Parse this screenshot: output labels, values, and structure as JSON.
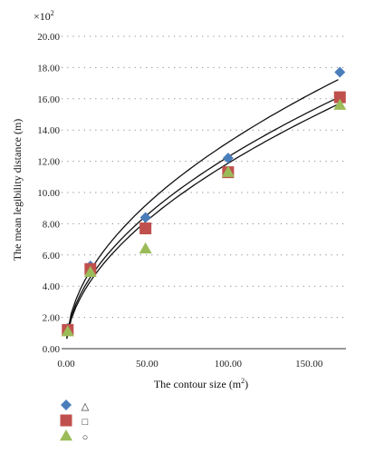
{
  "chart_data": {
    "type": "scatter",
    "multiplier": "×10",
    "multiplier_exp": "2",
    "xlabel": "The contour size (m",
    "xlabel_sup": "2",
    "xlabel_end": ")",
    "ylabel": "The mean legibility distance (m)",
    "xlim": [
      0,
      175
    ],
    "ylim": [
      0,
      20
    ],
    "x_ticks": [
      0,
      50,
      100,
      150
    ],
    "x_tick_labels": [
      "0.00",
      "50.00",
      "100.00",
      "150.00"
    ],
    "y_ticks": [
      0,
      2,
      4,
      6,
      8,
      10,
      12,
      14,
      16,
      18,
      20
    ],
    "y_tick_labels": [
      "0.00",
      "2.00",
      "4.00",
      "6.00",
      "8.00",
      "10.00",
      "12.00",
      "14.00",
      "16.00",
      "18.00",
      "20.00"
    ],
    "grid": "horizontal dotted",
    "series": [
      {
        "marker": "diamond",
        "color": "#4a7ebb",
        "x": [
          1,
          15,
          49,
          100,
          169
        ],
        "y": [
          1.3,
          5.3,
          8.4,
          12.2,
          17.7
        ],
        "fit": {
          "a": 1.25,
          "b": 0.512
        }
      },
      {
        "marker": "square",
        "color": "#c0504d",
        "x": [
          1,
          15,
          49,
          100,
          169
        ],
        "y": [
          1.2,
          5.1,
          7.7,
          11.3,
          16.1
        ],
        "fit": {
          "a": 1.12,
          "b": 0.52
        }
      },
      {
        "marker": "triangle",
        "color": "#9bbb59",
        "x": [
          1,
          15,
          49,
          100,
          169
        ],
        "y": [
          1.1,
          4.9,
          6.4,
          11.3,
          15.6
        ],
        "fit": {
          "a": 1.02,
          "b": 0.533
        }
      }
    ],
    "legend": [
      {
        "marker": "diamond",
        "color": "#4a7ebb",
        "line_symbol": "△"
      },
      {
        "marker": "square",
        "color": "#c0504d",
        "line_symbol": "□"
      },
      {
        "marker": "triangle",
        "color": "#9bbb59",
        "line_symbol": "○"
      }
    ]
  }
}
